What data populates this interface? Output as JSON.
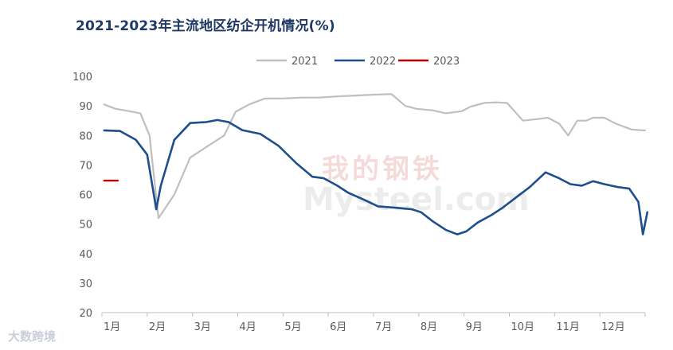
{
  "title": "2021-2023年主流地区纺企开机情况(%)",
  "watermark": "我的钢铁 Mysteel.com",
  "brand": "大数跨境",
  "chart_data": {
    "type": "line",
    "title": "2021-2023年主流地区纺企开机情况(%)",
    "ylim": [
      20,
      100
    ],
    "yticks": [
      20,
      30,
      40,
      50,
      60,
      70,
      80,
      90,
      100
    ],
    "xlim": [
      0,
      12
    ],
    "x_tick_labels": [
      "1月",
      "2月",
      "3月",
      "4月",
      "5月",
      "6月",
      "7月",
      "8月",
      "9月",
      "10月",
      "11月",
      "12月"
    ],
    "legend_position": "top-center",
    "grid": false,
    "series": [
      {
        "name": "2021",
        "color": "#bfbfbf",
        "x": [
          0.05,
          0.3,
          0.5,
          0.85,
          1.05,
          1.25,
          1.6,
          1.95,
          2.3,
          2.7,
          2.95,
          3.25,
          3.6,
          4.0,
          4.4,
          4.8,
          5.2,
          5.6,
          6.0,
          6.4,
          6.7,
          6.95,
          7.3,
          7.6,
          7.95,
          8.15,
          8.45,
          8.7,
          8.95,
          9.3,
          9.6,
          9.85,
          10.1,
          10.3,
          10.5,
          10.7,
          10.85,
          11.1,
          11.35,
          11.7,
          11.95,
          12.0
        ],
        "values": [
          90.5,
          89,
          88.5,
          87.5,
          80,
          52,
          60,
          72.5,
          76,
          80,
          88,
          90.5,
          92.5,
          92.5,
          92.8,
          92.8,
          93.2,
          93.5,
          93.8,
          94,
          90,
          89,
          88.5,
          87.5,
          88.2,
          89.8,
          91,
          91.2,
          91,
          85,
          85.5,
          86,
          84,
          80,
          85,
          85,
          86,
          86,
          84,
          82,
          81.7,
          81.7
        ]
      },
      {
        "name": "2022",
        "color": "#1f4e8c",
        "x": [
          0.05,
          0.4,
          0.75,
          1.0,
          1.2,
          1.3,
          1.6,
          1.95,
          2.3,
          2.55,
          2.8,
          3.1,
          3.5,
          3.9,
          4.3,
          4.65,
          4.9,
          5.2,
          5.45,
          5.75,
          6.1,
          6.5,
          6.85,
          7.05,
          7.3,
          7.6,
          7.85,
          8.05,
          8.3,
          8.6,
          8.85,
          9.15,
          9.45,
          9.8,
          10.1,
          10.35,
          10.6,
          10.85,
          11.1,
          11.4,
          11.65,
          11.85,
          11.95,
          12.05
        ],
        "values": [
          81.7,
          81.5,
          78.5,
          73.5,
          55,
          63,
          78.5,
          84.2,
          84.5,
          85.2,
          84.5,
          81.8,
          80.5,
          76.5,
          70.5,
          66,
          65.5,
          63,
          60.5,
          58.5,
          56,
          55.5,
          55,
          54,
          51,
          48,
          46.5,
          47.5,
          50.5,
          53,
          55.5,
          59,
          62.5,
          67.5,
          65.5,
          63.5,
          63,
          64.5,
          63.5,
          62.5,
          62,
          57.5,
          46.5,
          54
        ]
      },
      {
        "name": "2023",
        "color": "#c00000",
        "x": [
          0.05,
          0.35
        ],
        "values": [
          64.7,
          64.7
        ]
      }
    ]
  }
}
